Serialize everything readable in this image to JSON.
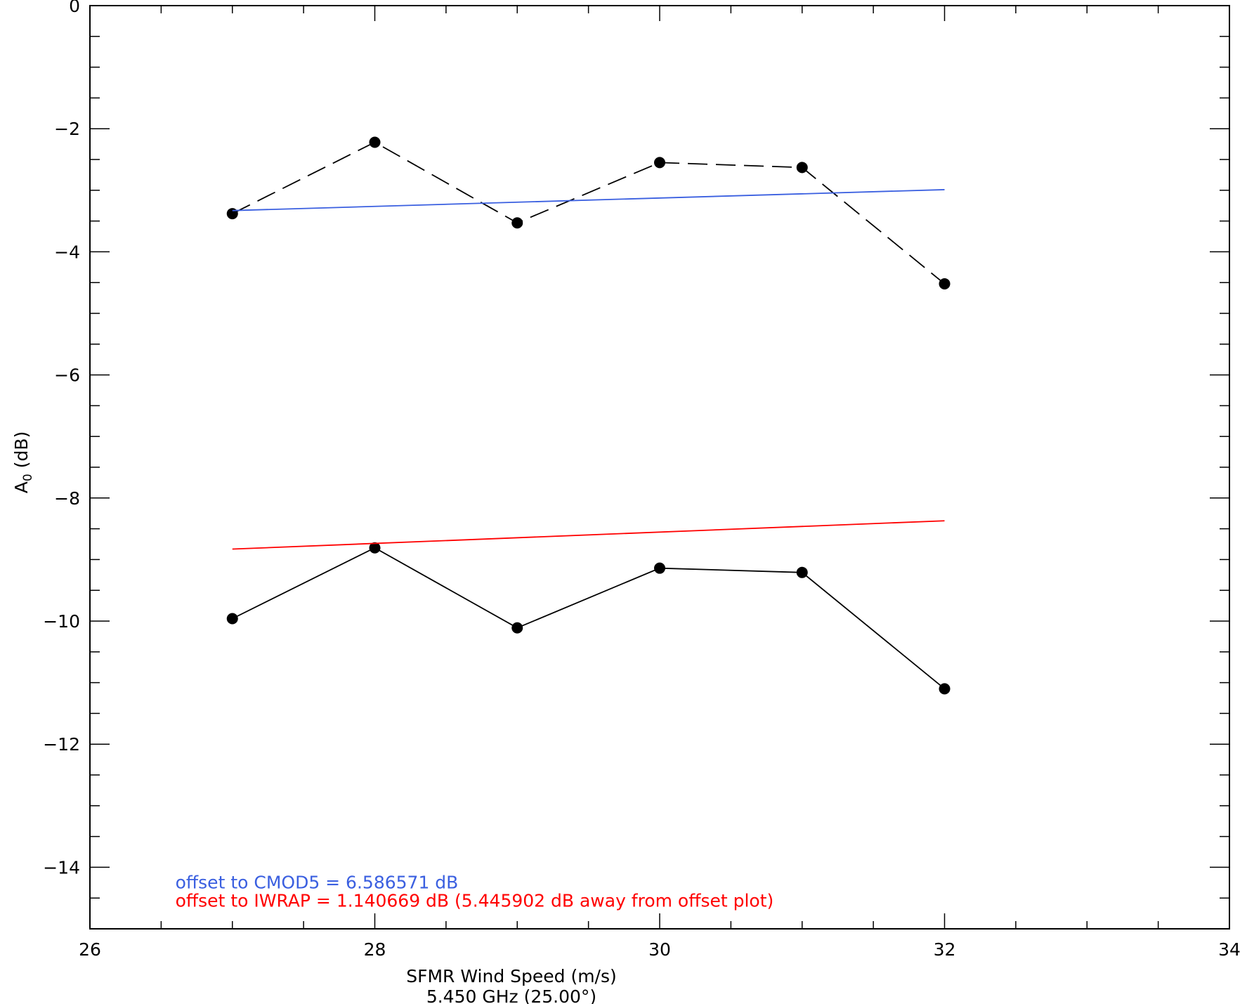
{
  "chart_data": {
    "type": "line",
    "title": "",
    "xlabel": "SFMR Wind Speed (m/s)",
    "xlabel_line2": "5.450 GHz (25.00°)",
    "ylabel_main": "A",
    "ylabel_sub": "0",
    "ylabel_unit": " (dB)",
    "xlim": [
      26,
      34
    ],
    "ylim": [
      -15,
      0
    ],
    "xticks": [
      26,
      28,
      30,
      32,
      34
    ],
    "xtick_labels": [
      "26",
      "28",
      "30",
      "32",
      "34"
    ],
    "yticks": [
      0,
      -2,
      -4,
      -6,
      -8,
      -10,
      -12,
      -14
    ],
    "ytick_labels": [
      "0",
      "−2",
      "−4",
      "−6",
      "−8",
      "−10",
      "−12",
      "−14"
    ],
    "grid": false,
    "series": [
      {
        "style": "dashed",
        "markers": true,
        "color": "#000000",
        "x": [
          27,
          28,
          29,
          30,
          31,
          32
        ],
        "y": [
          -3.38,
          -2.22,
          -3.53,
          -2.55,
          -2.63,
          -4.52
        ]
      },
      {
        "style": "solid",
        "markers": true,
        "color": "#000000",
        "x": [
          27,
          28,
          29,
          30,
          31,
          32
        ],
        "y": [
          -9.96,
          -8.81,
          -10.11,
          -9.14,
          -9.21,
          -11.1
        ]
      },
      {
        "style": "solid",
        "markers": false,
        "color": "#3a5fe0",
        "x": [
          27,
          32
        ],
        "y": [
          -3.33,
          -2.99
        ]
      },
      {
        "style": "solid",
        "markers": false,
        "color": "#ff0000",
        "x": [
          27,
          32
        ],
        "y": [
          -8.83,
          -8.37
        ]
      }
    ],
    "annotations": [
      {
        "text": "offset to CMOD5 = 6.586571 dB",
        "color": "#3a5fe0",
        "x": 26.6,
        "y": -14.25
      },
      {
        "text": "offset to IWRAP = 1.140669 dB (5.445902 dB away from offset plot)",
        "color": "#ff0000",
        "x": 26.6,
        "y": -14.55
      }
    ]
  }
}
